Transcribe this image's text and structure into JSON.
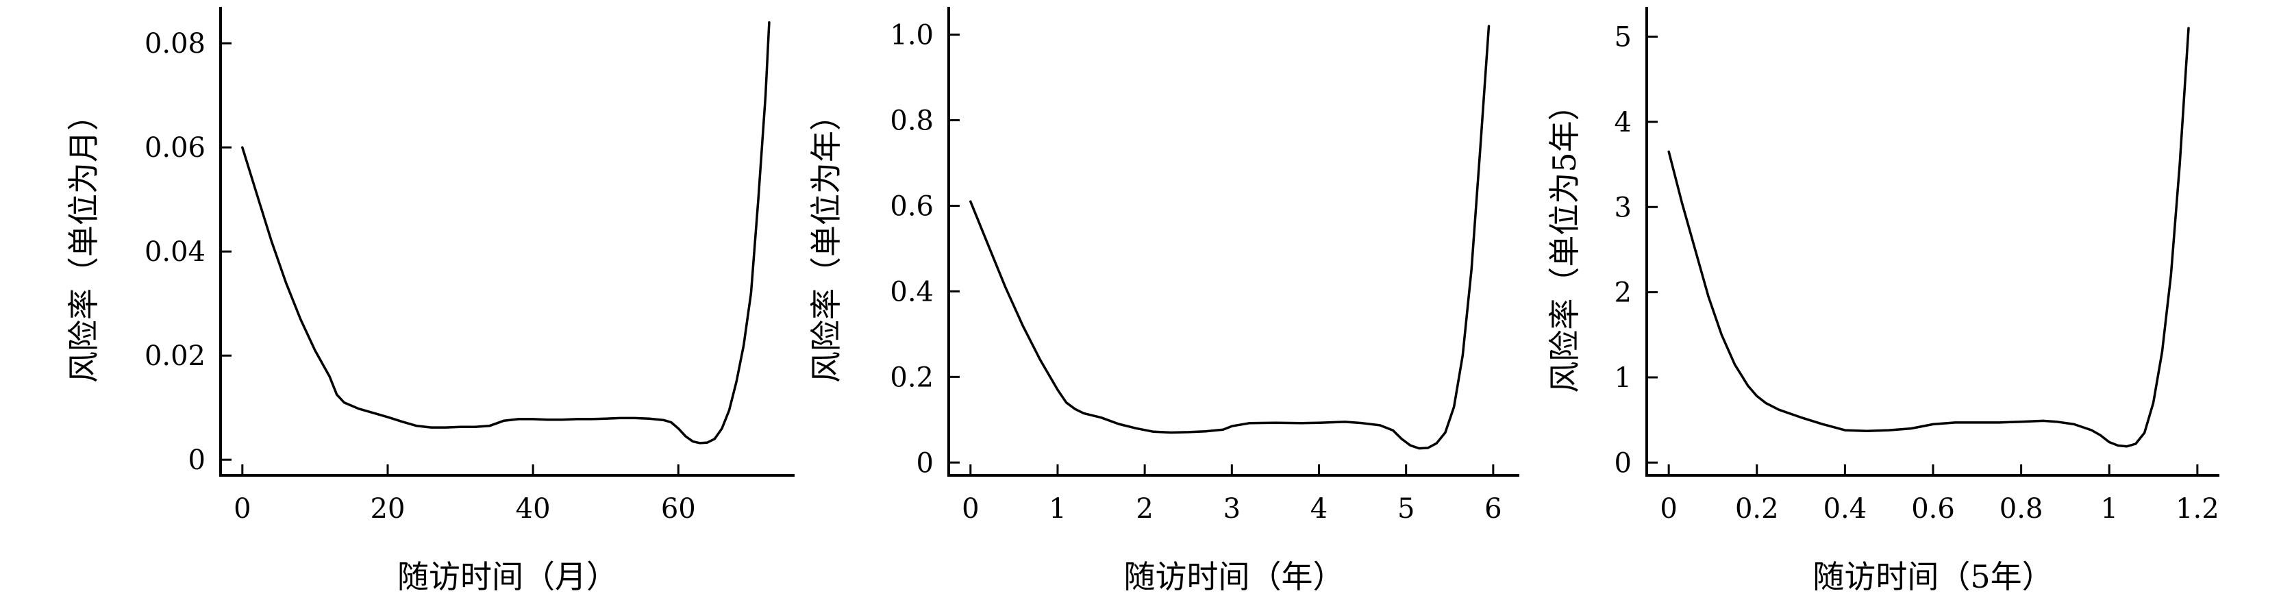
{
  "colors": {
    "line": "#000000",
    "axis": "#000000",
    "background": "#ffffff"
  },
  "chart_data": [
    {
      "type": "line",
      "title": "",
      "xlabel": "随访时间（月）",
      "ylabel": "风险率（单位为月）",
      "xlim": [
        -3,
        76
      ],
      "ylim": [
        -0.003,
        0.087
      ],
      "xticks": [
        0,
        20,
        40,
        60
      ],
      "xtick_labels": [
        "0",
        "20",
        "40",
        "60"
      ],
      "yticks": [
        0,
        0.02,
        0.04,
        0.06,
        0.08
      ],
      "ytick_labels": [
        "0",
        "0.02",
        "0.04",
        "0.06",
        "0.08"
      ],
      "grid": false,
      "series": [
        {
          "x": [
            0,
            2,
            4,
            6,
            8,
            10,
            12,
            13,
            14,
            16,
            18,
            20,
            22,
            24,
            26,
            28,
            30,
            32,
            34,
            36,
            38,
            40,
            42,
            44,
            46,
            48,
            50,
            52,
            54,
            56,
            58,
            59,
            60,
            61,
            62,
            63,
            64,
            65,
            66,
            67,
            68,
            69,
            70,
            71,
            72,
            72.5
          ],
          "y": [
            0.06,
            0.051,
            0.042,
            0.034,
            0.027,
            0.021,
            0.016,
            0.0125,
            0.011,
            0.0098,
            0.009,
            0.0082,
            0.0073,
            0.0065,
            0.0062,
            0.0062,
            0.0063,
            0.0063,
            0.0065,
            0.0075,
            0.0078,
            0.0078,
            0.0077,
            0.0077,
            0.0078,
            0.0078,
            0.0079,
            0.008,
            0.008,
            0.0079,
            0.0076,
            0.0072,
            0.006,
            0.0045,
            0.0035,
            0.0032,
            0.0033,
            0.004,
            0.006,
            0.0095,
            0.015,
            0.022,
            0.032,
            0.05,
            0.07,
            0.084
          ]
        }
      ]
    },
    {
      "type": "line",
      "title": "",
      "xlabel": "随访时间（年）",
      "ylabel": "风险率（单位为年）",
      "xlim": [
        -0.25,
        6.3
      ],
      "ylim": [
        -0.03,
        1.065
      ],
      "xticks": [
        0,
        1,
        2,
        3,
        4,
        5,
        6
      ],
      "xtick_labels": [
        "0",
        "1",
        "2",
        "3",
        "4",
        "5",
        "6"
      ],
      "yticks": [
        0,
        0.2,
        0.4,
        0.6,
        0.8,
        1.0
      ],
      "ytick_labels": [
        "0",
        "0.2",
        "0.4",
        "0.6",
        "0.8",
        "1.0"
      ],
      "grid": false,
      "series": [
        {
          "x": [
            0,
            0.2,
            0.4,
            0.6,
            0.8,
            1.0,
            1.1,
            1.2,
            1.3,
            1.5,
            1.7,
            1.9,
            2.1,
            2.3,
            2.5,
            2.7,
            2.9,
            3.0,
            3.2,
            3.5,
            3.8,
            4.0,
            4.3,
            4.5,
            4.7,
            4.85,
            4.95,
            5.05,
            5.15,
            5.25,
            5.35,
            5.45,
            5.55,
            5.65,
            5.75,
            5.85,
            5.95
          ],
          "y": [
            0.61,
            0.51,
            0.41,
            0.32,
            0.24,
            0.17,
            0.14,
            0.125,
            0.115,
            0.105,
            0.09,
            0.08,
            0.072,
            0.07,
            0.071,
            0.073,
            0.077,
            0.085,
            0.092,
            0.093,
            0.092,
            0.093,
            0.095,
            0.092,
            0.087,
            0.075,
            0.055,
            0.04,
            0.033,
            0.034,
            0.045,
            0.07,
            0.13,
            0.25,
            0.45,
            0.73,
            1.02
          ]
        }
      ]
    },
    {
      "type": "line",
      "title": "",
      "xlabel": "随访时间（5年）",
      "ylabel": "风险率（单位为5年）",
      "xlim": [
        -0.05,
        1.25
      ],
      "ylim": [
        -0.15,
        5.35
      ],
      "xticks": [
        0,
        0.2,
        0.4,
        0.6,
        0.8,
        1.0,
        1.2
      ],
      "xtick_labels": [
        "0",
        "0.2",
        "0.4",
        "0.6",
        "0.8",
        "1",
        "1.2"
      ],
      "yticks": [
        0,
        1,
        2,
        3,
        4,
        5
      ],
      "ytick_labels": [
        "0",
        "1",
        "2",
        "3",
        "4",
        "5"
      ],
      "grid": false,
      "series": [
        {
          "x": [
            0,
            0.03,
            0.06,
            0.09,
            0.12,
            0.15,
            0.18,
            0.2,
            0.22,
            0.25,
            0.3,
            0.35,
            0.4,
            0.45,
            0.5,
            0.55,
            0.6,
            0.65,
            0.7,
            0.75,
            0.8,
            0.85,
            0.88,
            0.92,
            0.96,
            0.98,
            1.0,
            1.02,
            1.04,
            1.06,
            1.08,
            1.1,
            1.12,
            1.14,
            1.16,
            1.18
          ],
          "y": [
            3.65,
            3.05,
            2.5,
            1.95,
            1.5,
            1.15,
            0.9,
            0.78,
            0.7,
            0.62,
            0.53,
            0.45,
            0.38,
            0.37,
            0.38,
            0.4,
            0.45,
            0.47,
            0.47,
            0.47,
            0.48,
            0.49,
            0.48,
            0.45,
            0.38,
            0.32,
            0.24,
            0.2,
            0.19,
            0.22,
            0.35,
            0.7,
            1.3,
            2.2,
            3.5,
            5.1
          ]
        }
      ]
    }
  ]
}
